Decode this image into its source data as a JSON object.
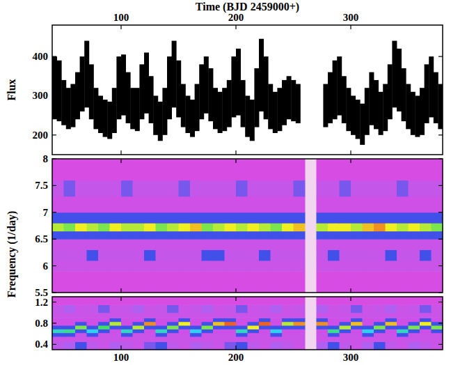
{
  "chart_data": [
    {
      "type": "range",
      "x_label": "Time (BJD 2459000+)",
      "y_label": "Flux",
      "color": "#000000",
      "xlim": [
        40,
        380
      ],
      "xticks": [
        100,
        200,
        300
      ],
      "ylim": [
        150,
        480
      ],
      "yticks": [
        200,
        300,
        400
      ],
      "x": [
        42,
        46,
        50,
        54,
        58,
        62,
        66,
        70,
        74,
        78,
        82,
        86,
        90,
        94,
        98,
        102,
        106,
        110,
        114,
        118,
        122,
        126,
        130,
        134,
        138,
        142,
        146,
        150,
        154,
        158,
        162,
        166,
        170,
        174,
        178,
        182,
        186,
        190,
        194,
        198,
        202,
        206,
        210,
        214,
        218,
        222,
        226,
        230,
        234,
        238,
        242,
        246,
        250,
        254,
        258,
        262,
        266,
        270,
        274,
        278,
        282,
        286,
        290,
        294,
        298,
        302,
        306,
        310,
        314,
        318,
        322,
        326,
        330,
        334,
        338,
        342,
        346,
        350,
        354,
        358,
        362,
        366,
        370,
        374,
        378
      ],
      "low": [
        240,
        235,
        225,
        215,
        220,
        240,
        260,
        270,
        240,
        215,
        205,
        195,
        190,
        205,
        240,
        250,
        230,
        215,
        210,
        240,
        255,
        230,
        200,
        185,
        200,
        240,
        270,
        245,
        220,
        205,
        195,
        210,
        240,
        255,
        235,
        215,
        205,
        210,
        220,
        245,
        250,
        220,
        195,
        185,
        220,
        260,
        240,
        215,
        205,
        210,
        225,
        240,
        235,
        230,
        null,
        null,
        null,
        null,
        null,
        220,
        230,
        240,
        250,
        230,
        210,
        200,
        190,
        175,
        200,
        225,
        215,
        200,
        210,
        240,
        270,
        260,
        235,
        215,
        200,
        195,
        200,
        230,
        245,
        230,
        215
      ],
      "high": [
        400,
        390,
        340,
        320,
        330,
        360,
        400,
        440,
        380,
        320,
        300,
        290,
        285,
        320,
        400,
        405,
        360,
        320,
        320,
        380,
        410,
        350,
        300,
        285,
        320,
        400,
        440,
        390,
        330,
        300,
        290,
        330,
        380,
        400,
        370,
        320,
        310,
        320,
        340,
        400,
        420,
        340,
        300,
        290,
        370,
        445,
        400,
        330,
        310,
        320,
        340,
        350,
        340,
        330,
        null,
        null,
        null,
        null,
        null,
        330,
        360,
        390,
        400,
        350,
        320,
        300,
        290,
        280,
        320,
        360,
        340,
        310,
        330,
        380,
        440,
        420,
        370,
        330,
        310,
        300,
        320,
        380,
        400,
        360,
        330
      ]
    },
    {
      "type": "heatmap",
      "y_label": "Frequency (1/day)",
      "tick_labels": "y",
      "xlim": [
        40,
        380
      ],
      "xticks": [
        100,
        200,
        300
      ],
      "ylim": [
        5.5,
        8
      ],
      "yticks": [
        5.5,
        6,
        6.5,
        7,
        7.5,
        8
      ],
      "zlim": [
        0,
        1
      ],
      "x_edges": [
        40,
        50,
        60,
        70,
        80,
        90,
        100,
        110,
        120,
        130,
        140,
        150,
        160,
        170,
        180,
        190,
        200,
        210,
        220,
        230,
        240,
        250,
        260,
        270,
        280,
        290,
        300,
        310,
        320,
        330,
        340,
        350,
        360,
        370,
        380
      ],
      "y_edges": [
        5.5,
        5.9,
        6.1,
        6.3,
        6.5,
        6.65,
        6.8,
        7.0,
        7.3,
        7.6,
        8.0
      ],
      "z": [
        [
          0.05,
          0.05,
          0.05,
          0.05,
          0.05,
          0.05,
          0.05,
          0.05,
          0.05,
          0.05,
          0.05,
          0.05,
          0.05,
          0.05,
          0.05,
          0.05,
          0.05,
          0.05,
          0.05,
          0.05,
          0.05,
          0.05,
          null,
          0.05,
          0.05,
          0.05,
          0.05,
          0.05,
          0.05,
          0.05,
          0.05,
          0.05,
          0.05,
          0.05
        ],
        [
          0.1,
          0.1,
          0.1,
          0.1,
          0.1,
          0.1,
          0.1,
          0.1,
          0.1,
          0.1,
          0.1,
          0.1,
          0.1,
          0.1,
          0.1,
          0.1,
          0.1,
          0.1,
          0.1,
          0.1,
          0.1,
          0.1,
          null,
          0.1,
          0.1,
          0.1,
          0.1,
          0.1,
          0.1,
          0.1,
          0.1,
          0.1,
          0.1,
          0.1
        ],
        [
          0.12,
          0.12,
          0.12,
          0.3,
          0.12,
          0.12,
          0.12,
          0.12,
          0.3,
          0.12,
          0.12,
          0.12,
          0.12,
          0.3,
          0.3,
          0.12,
          0.12,
          0.12,
          0.3,
          0.12,
          0.12,
          0.12,
          null,
          0.12,
          0.3,
          0.12,
          0.12,
          0.12,
          0.12,
          0.3,
          0.12,
          0.12,
          0.3,
          0.12
        ],
        [
          0.1,
          0.1,
          0.1,
          0.1,
          0.1,
          0.1,
          0.1,
          0.1,
          0.1,
          0.1,
          0.1,
          0.1,
          0.1,
          0.1,
          0.1,
          0.1,
          0.1,
          0.1,
          0.1,
          0.1,
          0.1,
          0.1,
          null,
          0.1,
          0.1,
          0.1,
          0.1,
          0.1,
          0.1,
          0.1,
          0.1,
          0.1,
          0.1,
          0.1
        ],
        [
          0.3,
          0.3,
          0.3,
          0.3,
          0.3,
          0.3,
          0.3,
          0.3,
          0.3,
          0.3,
          0.3,
          0.3,
          0.3,
          0.3,
          0.3,
          0.3,
          0.3,
          0.3,
          0.3,
          0.3,
          0.3,
          0.3,
          null,
          0.3,
          0.3,
          0.3,
          0.3,
          0.3,
          0.3,
          0.3,
          0.3,
          0.3,
          0.3,
          0.3
        ],
        [
          0.75,
          0.7,
          0.8,
          0.75,
          0.7,
          0.8,
          0.75,
          0.75,
          0.8,
          0.7,
          0.75,
          0.8,
          0.85,
          0.7,
          0.75,
          0.8,
          0.75,
          0.8,
          0.75,
          0.7,
          0.8,
          0.85,
          null,
          0.75,
          0.8,
          0.8,
          0.75,
          0.85,
          0.9,
          0.8,
          0.75,
          0.8,
          0.75,
          0.7
        ],
        [
          0.3,
          0.3,
          0.3,
          0.3,
          0.3,
          0.3,
          0.3,
          0.3,
          0.3,
          0.3,
          0.3,
          0.3,
          0.3,
          0.3,
          0.3,
          0.3,
          0.3,
          0.3,
          0.3,
          0.3,
          0.3,
          0.3,
          null,
          0.3,
          0.3,
          0.3,
          0.3,
          0.3,
          0.3,
          0.3,
          0.3,
          0.3,
          0.3,
          0.3
        ],
        [
          0.08,
          0.08,
          0.08,
          0.08,
          0.08,
          0.08,
          0.08,
          0.08,
          0.08,
          0.08,
          0.08,
          0.08,
          0.08,
          0.08,
          0.08,
          0.08,
          0.08,
          0.08,
          0.08,
          0.08,
          0.08,
          0.08,
          null,
          0.08,
          0.08,
          0.08,
          0.08,
          0.08,
          0.08,
          0.08,
          0.08,
          0.08,
          0.08,
          0.08
        ],
        [
          0.12,
          0.25,
          0.12,
          0.12,
          0.12,
          0.12,
          0.25,
          0.12,
          0.12,
          0.12,
          0.12,
          0.25,
          0.12,
          0.12,
          0.12,
          0.12,
          0.25,
          0.12,
          0.12,
          0.12,
          0.12,
          0.25,
          null,
          0.12,
          0.12,
          0.25,
          0.12,
          0.12,
          0.12,
          0.12,
          0.25,
          0.12,
          0.12,
          0.12
        ],
        [
          0.05,
          0.05,
          0.05,
          0.05,
          0.05,
          0.05,
          0.05,
          0.05,
          0.05,
          0.05,
          0.05,
          0.05,
          0.05,
          0.05,
          0.05,
          0.05,
          0.05,
          0.05,
          0.05,
          0.05,
          0.05,
          0.05,
          null,
          0.05,
          0.05,
          0.05,
          0.05,
          0.05,
          0.05,
          0.05,
          0.05,
          0.05,
          0.05,
          0.05
        ]
      ]
    },
    {
      "type": "heatmap",
      "xlim": [
        40,
        380
      ],
      "xticks": [
        100,
        200,
        300
      ],
      "ylim": [
        0.3,
        1.3
      ],
      "yticks": [
        0.4,
        0.8,
        1.2
      ],
      "zlim": [
        0,
        1
      ],
      "x_edges": [
        40,
        50,
        60,
        70,
        80,
        90,
        100,
        110,
        120,
        130,
        140,
        150,
        160,
        170,
        180,
        190,
        200,
        210,
        220,
        230,
        240,
        250,
        260,
        270,
        280,
        290,
        300,
        310,
        320,
        330,
        340,
        350,
        360,
        370,
        380
      ],
      "y_edges": [
        0.3,
        0.45,
        0.55,
        0.62,
        0.69,
        0.76,
        0.83,
        0.9,
        1.0,
        1.15,
        1.3
      ],
      "z": [
        [
          0.15,
          0.2,
          0.3,
          0.15,
          0.1,
          0.2,
          0.15,
          0.1,
          0.25,
          0.3,
          0.15,
          0.1,
          0.2,
          0.15,
          0.1,
          0.25,
          0.3,
          0.15,
          0.1,
          0.2,
          0.15,
          0.1,
          null,
          0.2,
          0.3,
          0.15,
          0.1,
          0.2,
          0.3,
          0.15,
          0.1,
          0.2,
          0.15,
          0.1
        ],
        [
          0.1,
          0.1,
          0.1,
          0.1,
          0.1,
          0.1,
          0.1,
          0.1,
          0.1,
          0.1,
          0.1,
          0.1,
          0.1,
          0.1,
          0.1,
          0.1,
          0.1,
          0.1,
          0.1,
          0.1,
          0.1,
          0.1,
          null,
          0.1,
          0.1,
          0.1,
          0.1,
          0.1,
          0.1,
          0.1,
          0.1,
          0.1,
          0.1,
          0.1
        ],
        [
          0.3,
          0.3,
          0.1,
          0.3,
          0.1,
          0.1,
          0.3,
          0.1,
          0.1,
          0.3,
          0.1,
          0.1,
          0.3,
          0.1,
          0.1,
          0.1,
          0.3,
          0.1,
          0.1,
          0.3,
          0.1,
          0.1,
          null,
          0.1,
          0.3,
          0.1,
          0.1,
          0.3,
          0.1,
          0.1,
          0.3,
          0.1,
          0.1,
          0.1
        ],
        [
          0.55,
          0.6,
          0.3,
          0.5,
          0.3,
          0.08,
          0.55,
          0.3,
          0.08,
          0.55,
          0.3,
          0.08,
          0.5,
          0.3,
          0.08,
          0.08,
          0.55,
          0.3,
          0.08,
          0.5,
          0.08,
          0.08,
          null,
          0.08,
          0.6,
          0.3,
          0.08,
          0.5,
          0.3,
          0.08,
          0.55,
          0.3,
          0.08,
          0.3
        ],
        [
          0.3,
          0.3,
          0.7,
          0.3,
          0.65,
          0.3,
          0.3,
          0.75,
          0.3,
          0.3,
          0.7,
          0.3,
          0.3,
          0.7,
          0.3,
          0.3,
          0.3,
          0.8,
          0.3,
          0.3,
          0.3,
          0.3,
          null,
          0.3,
          0.3,
          0.75,
          0.3,
          0.3,
          0.7,
          0.3,
          0.3,
          0.7,
          0.3,
          0.7
        ],
        [
          0.08,
          0.08,
          0.3,
          0.08,
          0.3,
          0.75,
          0.08,
          0.3,
          0.9,
          0.08,
          0.3,
          0.8,
          0.08,
          0.3,
          0.85,
          0.95,
          0.08,
          0.3,
          0.95,
          0.08,
          0.75,
          0.9,
          null,
          0.9,
          0.08,
          0.3,
          0.85,
          0.08,
          0.3,
          0.85,
          0.08,
          0.3,
          0.8,
          0.3
        ],
        [
          0.08,
          0.08,
          0.08,
          0.08,
          0.08,
          0.3,
          0.08,
          0.08,
          0.3,
          0.08,
          0.08,
          0.3,
          0.08,
          0.08,
          0.3,
          0.3,
          0.08,
          0.08,
          0.3,
          0.08,
          0.3,
          0.3,
          null,
          0.3,
          0.08,
          0.08,
          0.3,
          0.08,
          0.08,
          0.3,
          0.08,
          0.08,
          0.3,
          0.08
        ],
        [
          0.1,
          0.1,
          0.1,
          0.1,
          0.1,
          0.1,
          0.1,
          0.1,
          0.1,
          0.1,
          0.1,
          0.1,
          0.1,
          0.1,
          0.1,
          0.1,
          0.1,
          0.1,
          0.1,
          0.1,
          0.1,
          0.1,
          null,
          0.1,
          0.1,
          0.1,
          0.1,
          0.1,
          0.1,
          0.1,
          0.1,
          0.1,
          0.1,
          0.1
        ],
        [
          0.12,
          0.2,
          0.1,
          0.12,
          0.25,
          0.1,
          0.12,
          0.2,
          0.1,
          0.12,
          0.25,
          0.1,
          0.12,
          0.2,
          0.1,
          0.12,
          0.25,
          0.1,
          0.12,
          0.2,
          0.1,
          0.12,
          null,
          0.2,
          0.1,
          0.12,
          0.25,
          0.1,
          0.12,
          0.2,
          0.1,
          0.12,
          0.25,
          0.1
        ],
        [
          0.05,
          0.05,
          0.05,
          0.05,
          0.05,
          0.05,
          0.05,
          0.05,
          0.05,
          0.05,
          0.05,
          0.05,
          0.05,
          0.05,
          0.05,
          0.05,
          0.05,
          0.05,
          0.05,
          0.05,
          0.05,
          0.05,
          null,
          0.05,
          0.05,
          0.05,
          0.05,
          0.05,
          0.05,
          0.05,
          0.05,
          0.05,
          0.05,
          0.05
        ]
      ]
    }
  ]
}
